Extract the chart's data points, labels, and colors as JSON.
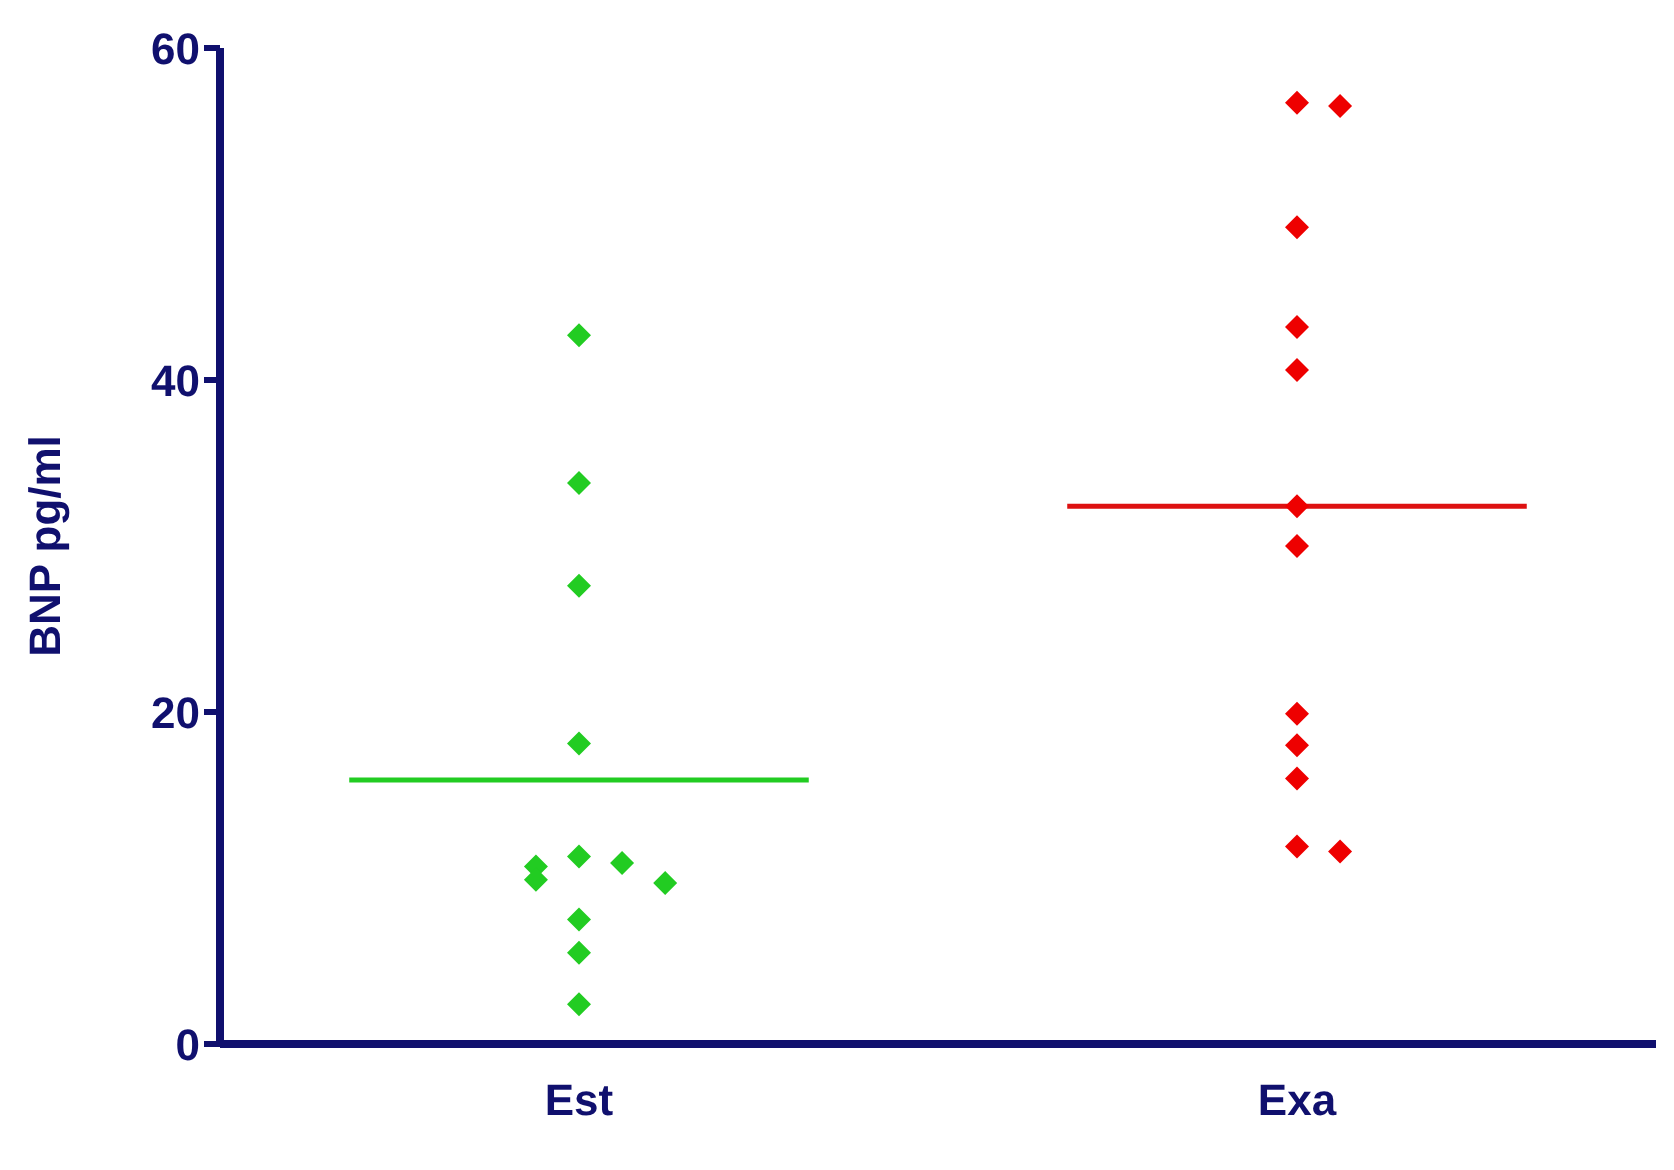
{
  "chart_data": {
    "type": "scatter",
    "ylabel": "BNP pg/ml",
    "categories": [
      "Est",
      "Exa"
    ],
    "ylim": [
      0,
      60
    ],
    "yticks": [
      0,
      20,
      40,
      60
    ],
    "grid": false,
    "legend": false,
    "marker": "diamond",
    "series": [
      {
        "color": "#22cc22",
        "x": [
          "Est",
          "Est",
          "Est",
          "Est",
          "Est",
          "Est",
          "Est",
          "Est",
          "Est",
          "Est",
          "Est",
          "Est"
        ],
        "values": [
          42.7,
          33.8,
          27.6,
          18.1,
          11.3,
          10.9,
          10.7,
          9.9,
          9.7,
          7.5,
          5.5,
          2.4
        ]
      },
      {
        "color": "#ee0000",
        "x": [
          "Exa",
          "Exa",
          "Exa",
          "Exa",
          "Exa",
          "Exa",
          "Exa",
          "Exa",
          "Exa",
          "Exa",
          "Exa",
          "Exa"
        ],
        "values": [
          56.7,
          56.5,
          49.2,
          43.2,
          40.6,
          32.4,
          30.0,
          19.9,
          18.0,
          16.0,
          11.9,
          11.6
        ]
      }
    ],
    "ref_lines": [
      {
        "axis": "y",
        "value": 15.9,
        "color": "#22cc22"
      },
      {
        "axis": "y",
        "value": 32.4,
        "color": "#dd1111"
      }
    ]
  }
}
